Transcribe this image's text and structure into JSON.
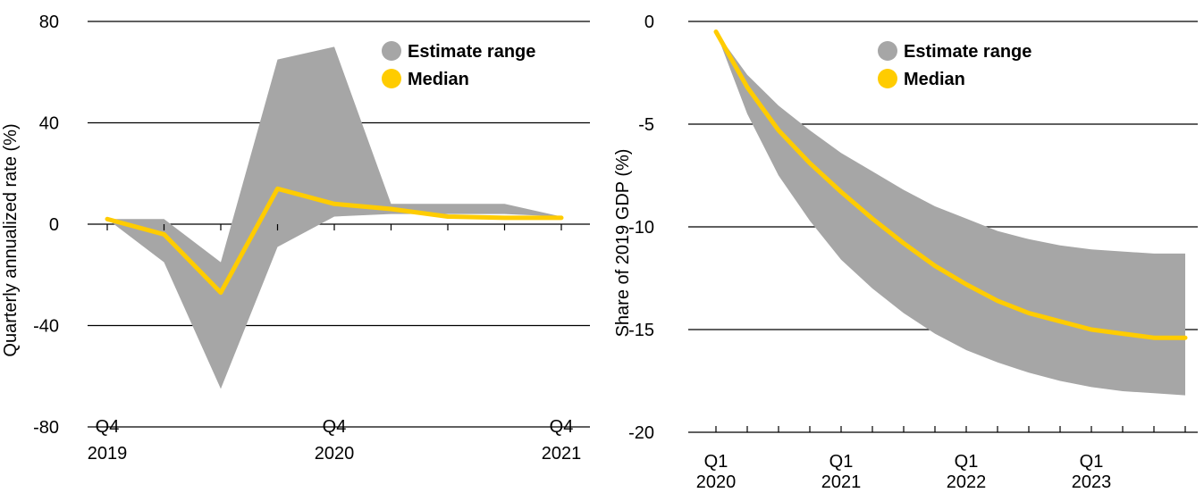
{
  "chart_data": [
    {
      "type": "area",
      "ylabel": "Quarterly annualized rate (%)",
      "ylim": [
        -80,
        80
      ],
      "yticks": [
        80,
        40,
        0,
        -40,
        -80
      ],
      "grid": true,
      "legend_position": "top-right",
      "legend": [
        {
          "label": "Estimate range",
          "color": "#a6a6a6"
        },
        {
          "label": "Median",
          "color": "#ffcc00"
        }
      ],
      "x_ticks": [
        {
          "q": 0,
          "line1": "Q4",
          "line2": "2019"
        },
        {
          "q": 4,
          "line1": "Q4",
          "line2": "2020"
        },
        {
          "q": 8,
          "line1": "Q4",
          "line2": "2021"
        }
      ],
      "x": [
        "Q4 2019",
        "Q1 2020",
        "Q2 2020",
        "Q3 2020",
        "Q4 2020",
        "Q1 2021",
        "Q2 2021",
        "Q3 2021",
        "Q4 2021"
      ],
      "series": [
        {
          "name": "Estimate range",
          "low": [
            2,
            -15,
            -65,
            -9,
            3,
            4,
            4,
            4,
            3
          ],
          "high": [
            2,
            2,
            -15,
            65,
            70,
            8,
            8,
            8,
            3
          ]
        },
        {
          "name": "Median",
          "values": [
            2,
            -4,
            -27,
            14,
            8,
            6,
            3,
            2.5,
            2.5
          ]
        }
      ]
    },
    {
      "type": "area",
      "ylabel": "Share of 2019 GDP (%)",
      "ylim": [
        -20,
        0
      ],
      "yticks": [
        0,
        -5,
        -10,
        -15,
        -20
      ],
      "grid": true,
      "legend_position": "top-right",
      "legend": [
        {
          "label": "Estimate range",
          "color": "#a6a6a6"
        },
        {
          "label": "Median",
          "color": "#ffcc00"
        }
      ],
      "x_ticks": [
        {
          "q": 0,
          "line1": "Q1",
          "line2": "2020"
        },
        {
          "q": 4,
          "line1": "Q1",
          "line2": "2021"
        },
        {
          "q": 8,
          "line1": "Q1",
          "line2": "2022"
        },
        {
          "q": 12,
          "line1": "Q1",
          "line2": "2023"
        }
      ],
      "x": [
        "Q1 2020",
        "Q2 2020",
        "Q3 2020",
        "Q4 2020",
        "Q1 2021",
        "Q2 2021",
        "Q3 2021",
        "Q4 2021",
        "Q1 2022",
        "Q2 2022",
        "Q3 2022",
        "Q4 2022",
        "Q1 2023",
        "Q2 2023",
        "Q3 2023",
        "Q4 2023"
      ],
      "series": [
        {
          "name": "Estimate range",
          "high": [
            -0.5,
            -2.6,
            -4.1,
            -5.3,
            -6.4,
            -7.3,
            -8.2,
            -9.0,
            -9.6,
            -10.2,
            -10.6,
            -10.9,
            -11.1,
            -11.2,
            -11.3,
            -11.3
          ],
          "low": [
            -0.5,
            -4.5,
            -7.5,
            -9.7,
            -11.6,
            -13.0,
            -14.2,
            -15.2,
            -16.0,
            -16.6,
            -17.1,
            -17.5,
            -17.8,
            -18.0,
            -18.1,
            -18.2
          ]
        },
        {
          "name": "Median",
          "values": [
            -0.5,
            -3.2,
            -5.3,
            -6.9,
            -8.3,
            -9.6,
            -10.8,
            -11.9,
            -12.8,
            -13.6,
            -14.2,
            -14.6,
            -15.0,
            -15.2,
            -15.4,
            -15.4
          ]
        }
      ]
    }
  ]
}
